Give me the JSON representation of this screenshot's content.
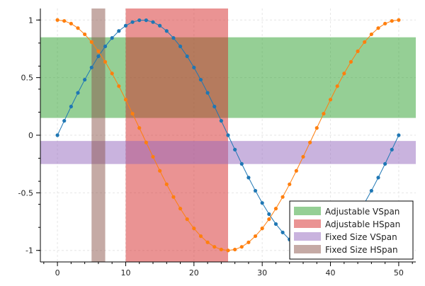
{
  "chart_data": {
    "type": "line",
    "title": "",
    "xlabel": "",
    "ylabel": "",
    "xlim": [
      -2.5,
      52.5
    ],
    "ylim": [
      -1.1,
      1.1
    ],
    "x_ticks": [
      0,
      10,
      20,
      30,
      40,
      50
    ],
    "x_tick_labels": [
      "0",
      "10",
      "20",
      "30",
      "40",
      "50"
    ],
    "y_ticks": [
      -1,
      -0.5,
      0,
      0.5,
      1
    ],
    "y_tick_labels": [
      "-1",
      "-0.5",
      "0",
      "0.5",
      "1"
    ],
    "grid": true,
    "legend_position": "bottom-right",
    "series": [
      {
        "color": "#1f77b4",
        "x": [
          0,
          1,
          2,
          3,
          4,
          5,
          6,
          7,
          8,
          9,
          10,
          11,
          12,
          13,
          14,
          15,
          16,
          17,
          18,
          19,
          20,
          21,
          22,
          23,
          24,
          25,
          26,
          27,
          28,
          29,
          30,
          31,
          32,
          33,
          34,
          35,
          36,
          37,
          38,
          39,
          40,
          41,
          42,
          43,
          44,
          45,
          46,
          47,
          48,
          49,
          50
        ],
        "values": [
          0.0,
          0.125,
          0.249,
          0.368,
          0.482,
          0.588,
          0.685,
          0.771,
          0.844,
          0.905,
          0.951,
          0.982,
          0.998,
          0.998,
          0.982,
          0.951,
          0.905,
          0.844,
          0.771,
          0.685,
          0.588,
          0.482,
          0.368,
          0.249,
          0.125,
          0.0,
          -0.125,
          -0.249,
          -0.368,
          -0.482,
          -0.588,
          -0.685,
          -0.771,
          -0.844,
          -0.905,
          -0.951,
          -0.982,
          -0.998,
          -0.998,
          -0.982,
          -0.951,
          -0.905,
          -0.844,
          -0.771,
          -0.685,
          -0.588,
          -0.482,
          -0.368,
          -0.249,
          -0.125,
          0.0
        ]
      },
      {
        "color": "#ff7f0e",
        "x": [
          0,
          1,
          2,
          3,
          4,
          5,
          6,
          7,
          8,
          9,
          10,
          11,
          12,
          13,
          14,
          15,
          16,
          17,
          18,
          19,
          20,
          21,
          22,
          23,
          24,
          25,
          26,
          27,
          28,
          29,
          30,
          31,
          32,
          33,
          34,
          35,
          36,
          37,
          38,
          39,
          40,
          41,
          42,
          43,
          44,
          45,
          46,
          47,
          48,
          49,
          50
        ],
        "values": [
          1.0,
          0.992,
          0.969,
          0.93,
          0.876,
          0.809,
          0.729,
          0.637,
          0.536,
          0.426,
          0.309,
          0.187,
          0.063,
          -0.063,
          -0.187,
          -0.309,
          -0.426,
          -0.536,
          -0.637,
          -0.729,
          -0.809,
          -0.876,
          -0.93,
          -0.969,
          -0.992,
          -1.0,
          -0.992,
          -0.969,
          -0.93,
          -0.876,
          -0.809,
          -0.729,
          -0.637,
          -0.536,
          -0.426,
          -0.309,
          -0.187,
          -0.063,
          0.063,
          0.187,
          0.309,
          0.426,
          0.536,
          0.637,
          0.729,
          0.809,
          0.876,
          0.93,
          0.969,
          0.992,
          1.0
        ]
      }
    ],
    "spans": [
      {
        "label": "Adjustable VSpan",
        "orientation": "horizontal",
        "from": 0.15,
        "to": 0.85,
        "color": "#2ca02c",
        "opacity": 0.5
      },
      {
        "label": "Adjustable HSpan",
        "orientation": "vertical",
        "from": 10,
        "to": 25,
        "color": "#d62728",
        "opacity": 0.5
      },
      {
        "label": "Fixed Size VSpan",
        "orientation": "horizontal",
        "from": -0.25,
        "to": -0.05,
        "color": "#9467bd",
        "opacity": 0.5
      },
      {
        "label": "Fixed Size HSpan",
        "orientation": "vertical",
        "from": 5,
        "to": 7,
        "color": "#8c564b",
        "opacity": 0.5
      }
    ],
    "legend": [
      "Adjustable VSpan",
      "Adjustable HSpan",
      "Fixed Size VSpan",
      "Fixed Size HSpan"
    ]
  }
}
